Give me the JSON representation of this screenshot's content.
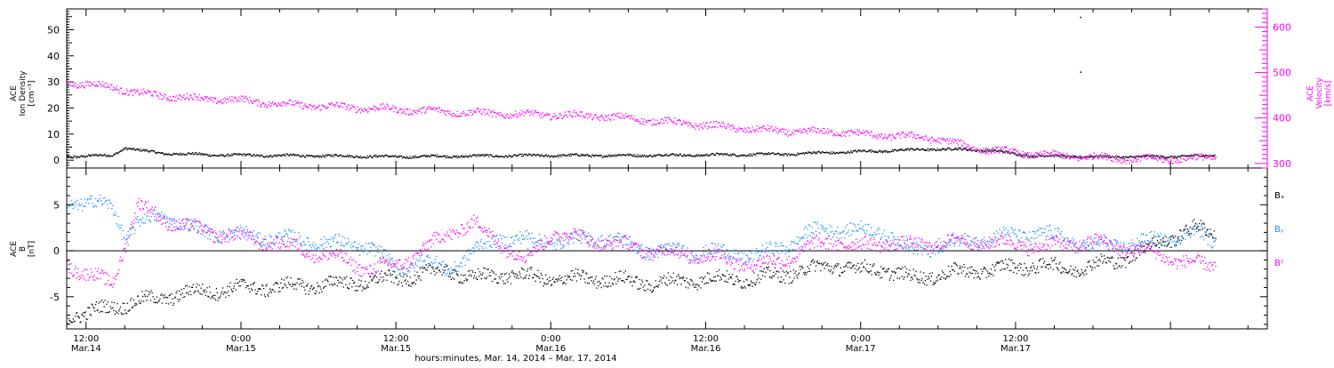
{
  "chart_data": [
    {
      "type": "scatter",
      "panel": "top",
      "ylabel_left": [
        "ACE",
        "Ion Density",
        "[cm⁻³]"
      ],
      "ylabel_right": [
        "ACE",
        "Velocity",
        "[km/s]"
      ],
      "ylim_left": [
        -3,
        58
      ],
      "ylim_right": [
        290,
        640
      ],
      "yticks_left": [
        0,
        10,
        20,
        30,
        40,
        50
      ],
      "yticks_right": [
        300,
        400,
        500,
        600
      ],
      "series": [
        {
          "key": "density",
          "axis": "left",
          "color": "#000000",
          "x": [
            -2,
            0,
            2,
            3,
            4,
            6,
            10,
            14,
            20,
            24,
            30,
            36,
            42,
            48,
            54,
            58,
            62,
            66,
            70,
            72,
            74,
            78,
            82,
            86,
            87.5
          ],
          "y": [
            1.5,
            1.8,
            2.0,
            5.0,
            4.0,
            2.8,
            2.2,
            2.0,
            1.8,
            1.5,
            1.8,
            2.0,
            2.0,
            2.2,
            2.5,
            3.2,
            3.8,
            4.5,
            4.0,
            2.5,
            1.8,
            1.5,
            1.5,
            1.8,
            2.0
          ]
        },
        {
          "key": "velocity",
          "axis": "right",
          "color": "#ff00ff",
          "x": [
            -2,
            0,
            2,
            4,
            8,
            12,
            16,
            20,
            24,
            28,
            32,
            36,
            40,
            44,
            48,
            52,
            56,
            58,
            60,
            64,
            66,
            68,
            70,
            72,
            74,
            78,
            82,
            86,
            87.5
          ],
          "y": [
            480,
            475,
            470,
            455,
            445,
            440,
            430,
            425,
            420,
            415,
            410,
            408,
            405,
            395,
            385,
            375,
            370,
            372,
            365,
            360,
            355,
            340,
            330,
            325,
            320,
            315,
            310,
            312,
            315
          ]
        }
      ],
      "outliers": [
        {
          "axis": "left",
          "x": 77,
          "y": 55
        },
        {
          "axis": "left",
          "x": 77,
          "y": 34
        }
      ]
    },
    {
      "type": "scatter",
      "panel": "bottom",
      "ylabel_left": [
        "ACE",
        "B",
        "[nT]"
      ],
      "ylim": [
        -8.5,
        9
      ],
      "yticks": [
        -5,
        0,
        5
      ],
      "zero_line": true,
      "legend": [
        "Bₓ",
        "Bᵧ",
        "Bᶻ"
      ],
      "series": [
        {
          "key": "Bx",
          "label": "Bₓ",
          "color": "#000000",
          "x": [
            -2,
            0,
            2,
            4,
            6,
            8,
            12,
            16,
            20,
            24,
            26,
            28,
            30,
            32,
            36,
            40,
            44,
            48,
            52,
            54,
            56,
            58,
            60,
            62,
            64,
            66,
            70,
            74,
            76,
            80,
            84,
            86,
            87.5
          ],
          "y": [
            -7,
            -6.8,
            -6,
            -5.5,
            -5,
            -4.5,
            -4,
            -3.8,
            -3.5,
            -3,
            -2.5,
            -2,
            -3,
            -2.5,
            -3,
            -3,
            -3.5,
            -3,
            -3,
            -2.5,
            -2,
            -1.5,
            -2,
            -2,
            -3,
            -2.5,
            -2,
            -1.5,
            -2,
            -1,
            1.5,
            2.5,
            2.0
          ]
        },
        {
          "key": "By",
          "label": "Bᵧ",
          "color": "#1e90ff",
          "x": [
            -2,
            0,
            2,
            3,
            4,
            6,
            8,
            10,
            14,
            18,
            22,
            24,
            26,
            28,
            30,
            32,
            36,
            40,
            44,
            48,
            52,
            54,
            56,
            58,
            62,
            64,
            66,
            70,
            74,
            78,
            82,
            84,
            86,
            87.5
          ],
          "y": [
            5.5,
            5.2,
            5,
            1.5,
            3,
            4,
            2.5,
            2,
            1.5,
            1,
            0.5,
            -2,
            -1,
            -2,
            0,
            1.5,
            1,
            1.5,
            0,
            0,
            -0.5,
            0.5,
            2,
            2.5,
            2,
            0,
            0.5,
            1.5,
            2,
            0.5,
            1,
            1.5,
            2,
            1.0
          ]
        },
        {
          "key": "Bz",
          "label": "Bᶻ",
          "color": "#ff00ff",
          "x": [
            -2,
            0,
            2,
            4,
            6,
            8,
            10,
            12,
            16,
            20,
            22,
            24,
            26,
            28,
            30,
            32,
            34,
            36,
            40,
            44,
            48,
            50,
            52,
            54,
            56,
            58,
            60,
            62,
            64,
            66,
            70,
            74,
            78,
            82,
            86,
            87.5
          ],
          "y": [
            -1,
            -2.5,
            -3.5,
            5,
            3.5,
            2.5,
            2,
            1.5,
            0.5,
            -1,
            -2,
            -1.5,
            0,
            2,
            3,
            1,
            -1,
            2,
            1,
            0,
            -0.5,
            -1,
            -1.5,
            -1,
            0.5,
            1,
            0.5,
            1,
            0.5,
            1,
            1,
            0.5,
            1,
            0,
            -1.5,
            -1.5
          ]
        }
      ]
    }
  ],
  "x_axis": {
    "ticks": [
      {
        "hour": 0,
        "time": "12:00",
        "date": "Mar.14"
      },
      {
        "hour": 12,
        "time": "0:00",
        "date": "Mar.15"
      },
      {
        "hour": 24,
        "time": "12:00",
        "date": "Mar.15"
      },
      {
        "hour": 36,
        "time": "0:00",
        "date": "Mar.16"
      },
      {
        "hour": 48,
        "time": "12:00",
        "date": "Mar.16"
      },
      {
        "hour": 60,
        "time": "0:00",
        "date": "Mar.17"
      },
      {
        "hour": 72,
        "time": "12:00",
        "date": "Mar.17"
      }
    ],
    "xlim": [
      -1.5,
      91.5
    ],
    "xlabel": "hours:minutes, Mar. 14, 2014 – Mar. 17, 2014"
  }
}
